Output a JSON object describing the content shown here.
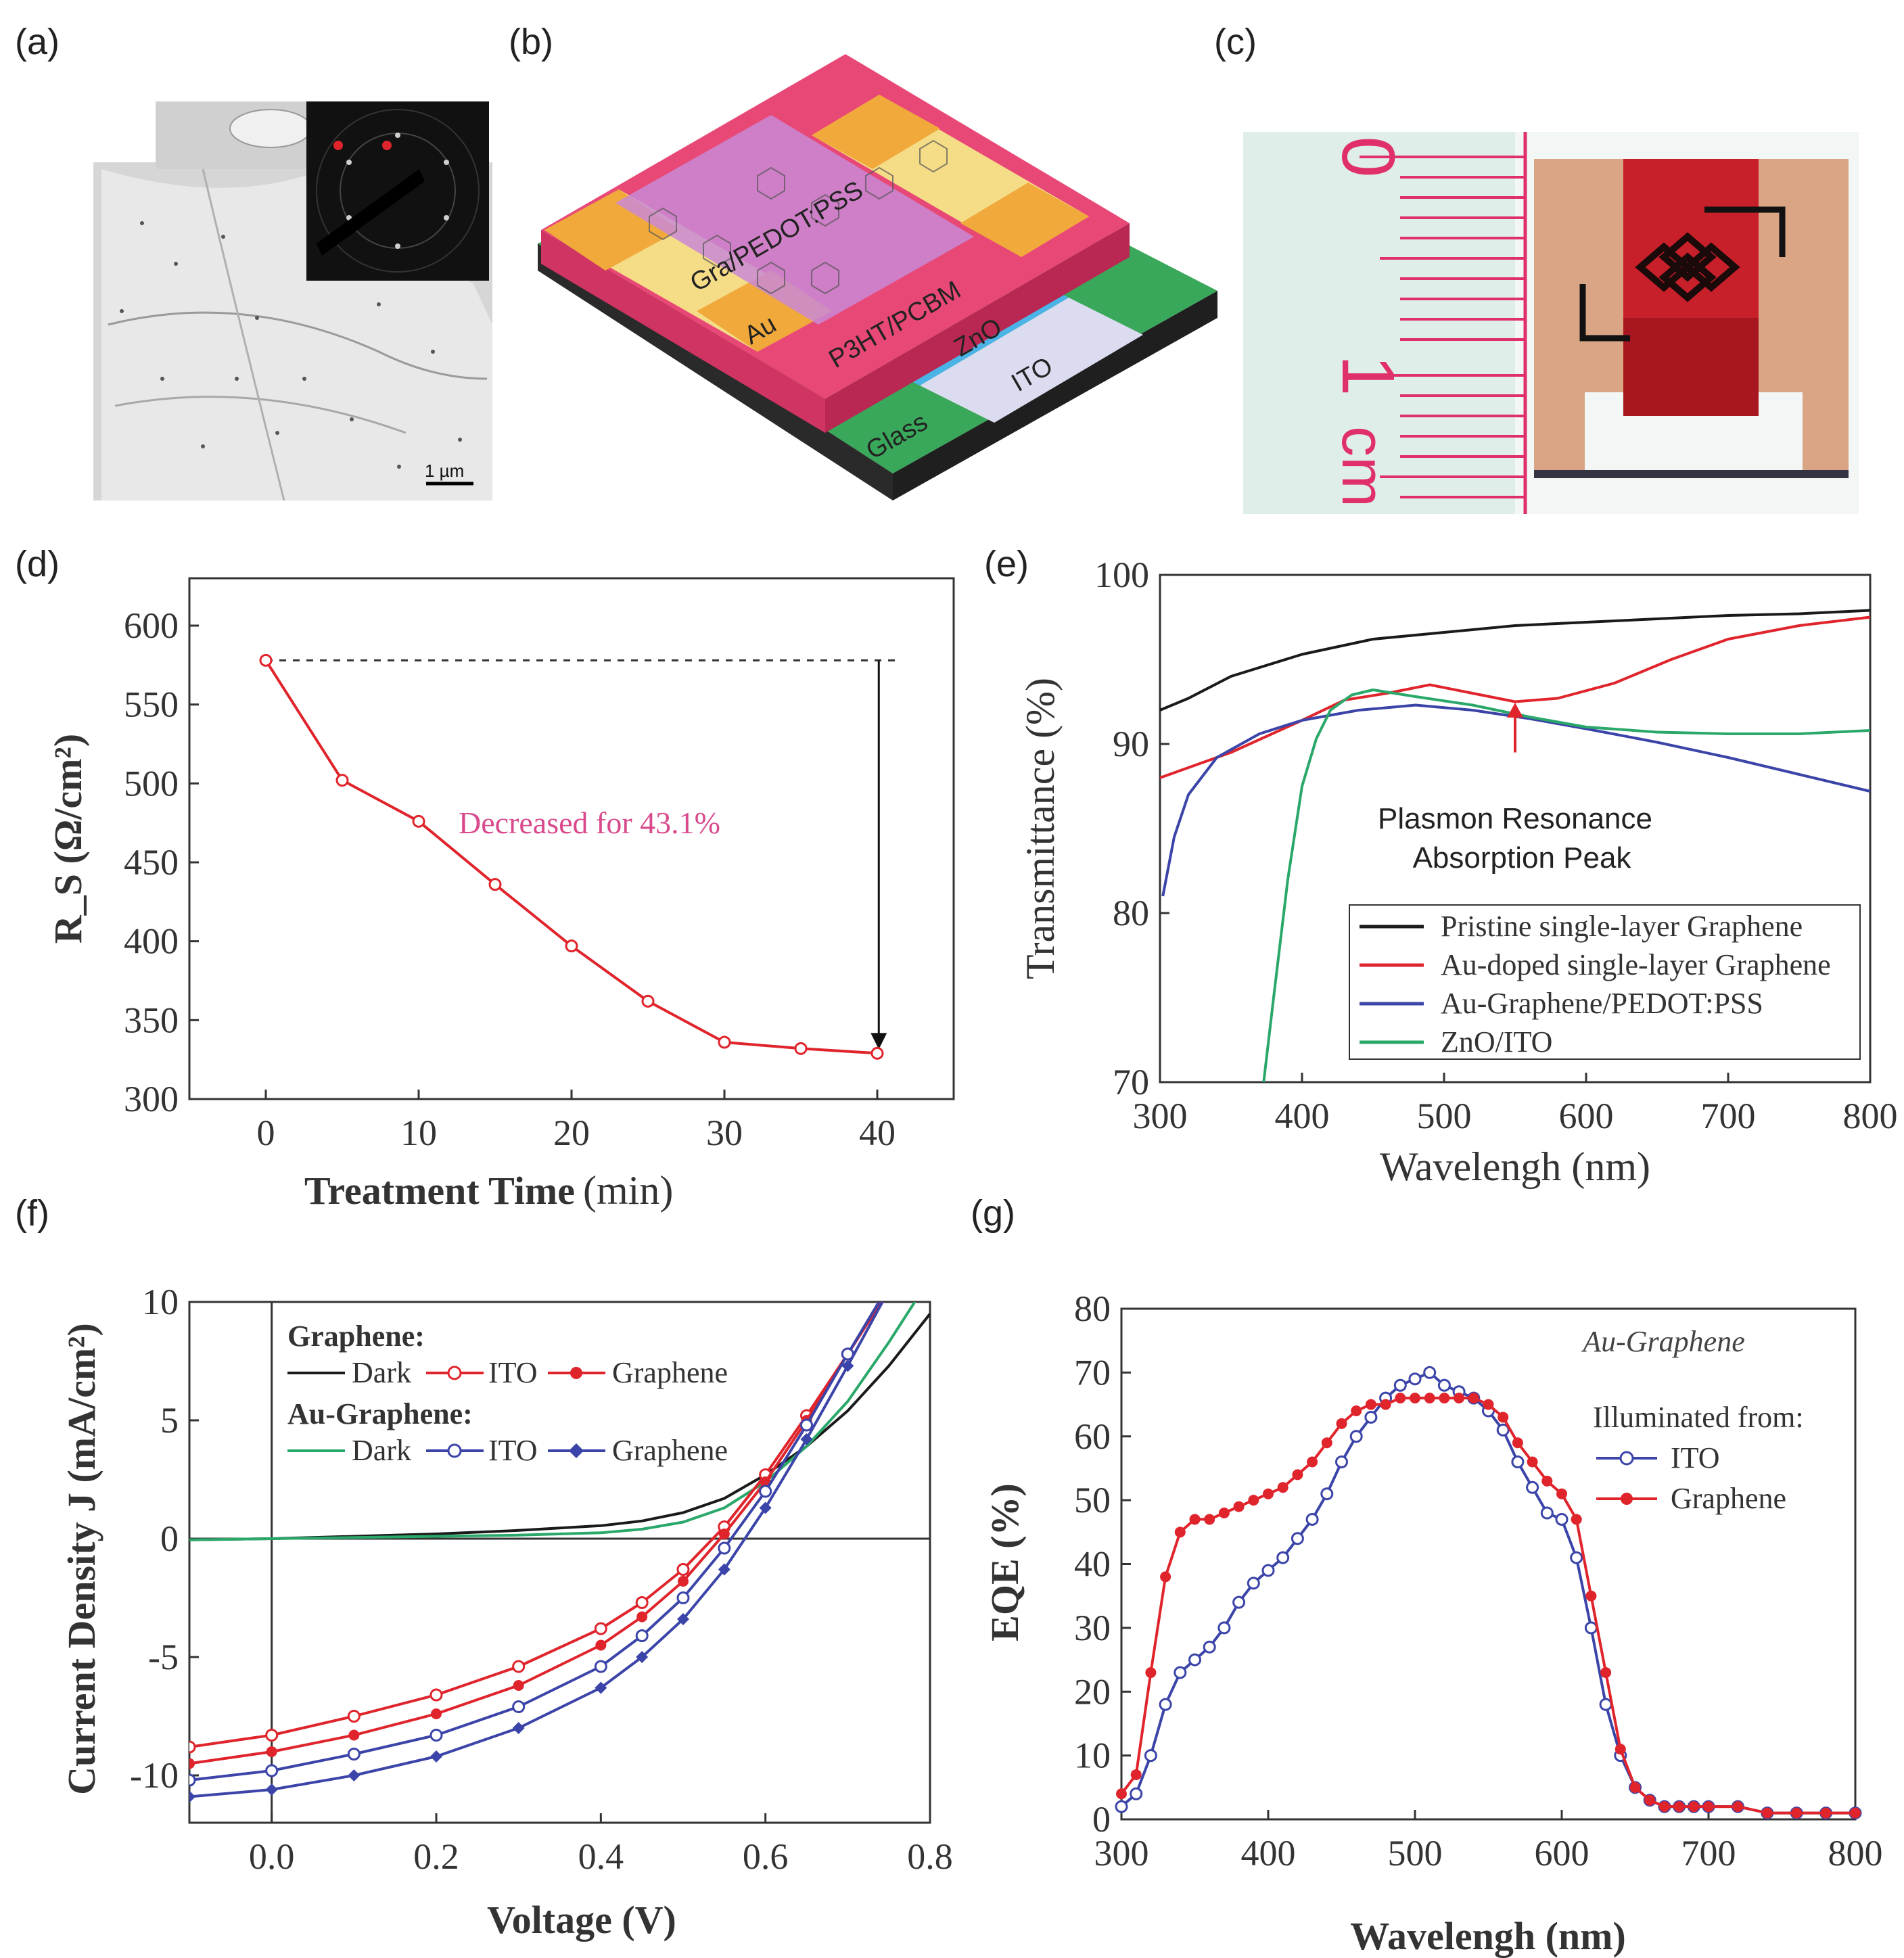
{
  "panels": {
    "a": "(a)",
    "b": "(b)",
    "c": "(c)",
    "d": "(d)",
    "e": "(e)",
    "f": "(f)",
    "g": "(g)"
  },
  "micrograph": {
    "scale_label": "1 µm"
  },
  "device": {
    "top_layer": "Gra/PEDOT:PSS",
    "active_layer": "P3HT/PCBM",
    "electrode": "Au",
    "etl": "ZnO",
    "anode": "ITO",
    "substrate": "Glass"
  },
  "photo": {
    "ruler_zero": "0",
    "ruler_one": "1",
    "ruler_unit": "cm"
  },
  "colors": {
    "black": "#1a1a1a",
    "red": "#e0242c",
    "blue": "#3b44a8",
    "green": "#2aa86a",
    "pink": "#d94a8c"
  },
  "chart_data": [
    {
      "id": "d",
      "type": "line",
      "title": "",
      "xlabel_bold": "Treatment Time",
      "xlabel_unit": "(min)",
      "ylabel": "R_S (Ω/cm²)",
      "xlim": [
        -5,
        45
      ],
      "ylim": [
        300,
        630
      ],
      "xticks": [
        0,
        10,
        20,
        30,
        40
      ],
      "yticks": [
        300,
        350,
        400,
        450,
        500,
        550,
        600
      ],
      "x": [
        0,
        5,
        10,
        15,
        20,
        25,
        30,
        35,
        40
      ],
      "values": [
        578,
        502,
        476,
        436,
        397,
        362,
        336,
        332,
        329
      ],
      "reference_line": 578,
      "annotation": "Decreased for 43.1%"
    },
    {
      "id": "e",
      "type": "line",
      "xlabel": "Wavelengh (nm)",
      "ylabel": "Transmittance (%)",
      "xlim": [
        300,
        800
      ],
      "ylim": [
        70,
        100
      ],
      "xticks": [
        300,
        400,
        500,
        600,
        700,
        800
      ],
      "yticks": [
        70,
        80,
        90,
        100
      ],
      "annotation": [
        "Plasmon Resonance",
        "Absorption Peak"
      ],
      "annotation_x": 550,
      "series": [
        {
          "name": "Pristine single-layer Graphene",
          "color": "#1a1a1a",
          "x": [
            300,
            320,
            350,
            400,
            450,
            500,
            550,
            600,
            650,
            700,
            750,
            800
          ],
          "values": [
            92.0,
            92.7,
            94.0,
            95.3,
            96.2,
            96.6,
            97.0,
            97.2,
            97.4,
            97.6,
            97.7,
            97.9
          ]
        },
        {
          "name": "Au-doped single-layer Graphene",
          "color": "#e0242c",
          "x": [
            300,
            350,
            400,
            430,
            460,
            490,
            520,
            550,
            580,
            620,
            660,
            700,
            750,
            800
          ],
          "values": [
            88.0,
            89.5,
            91.4,
            92.6,
            93.0,
            93.5,
            93.0,
            92.5,
            92.7,
            93.6,
            95.0,
            96.2,
            97.0,
            97.5
          ]
        },
        {
          "name": "Au-Graphene/PEDOT:PSS",
          "color": "#3b44a8",
          "x": [
            302,
            310,
            320,
            340,
            370,
            400,
            440,
            480,
            520,
            560,
            600,
            650,
            700,
            750,
            800
          ],
          "values": [
            81.0,
            84.5,
            87.0,
            89.2,
            90.6,
            91.4,
            92.0,
            92.3,
            92.0,
            91.5,
            90.9,
            90.1,
            89.2,
            88.2,
            87.2
          ]
        },
        {
          "name": "ZnO/ITO",
          "color": "#2aa86a",
          "x": [
            373,
            380,
            390,
            400,
            410,
            420,
            435,
            450,
            480,
            520,
            560,
            600,
            650,
            700,
            750,
            800
          ],
          "values": [
            70.0,
            75.0,
            82.0,
            87.5,
            90.3,
            92.0,
            92.9,
            93.2,
            92.8,
            92.3,
            91.6,
            91.0,
            90.7,
            90.6,
            90.6,
            90.8
          ]
        }
      ]
    },
    {
      "id": "f",
      "type": "line",
      "xlabel": "Voltage (V)",
      "ylabel": "Current Density J (mA/cm²)",
      "xlim": [
        -0.1,
        0.8
      ],
      "ylim": [
        -12,
        10
      ],
      "xticks": [
        0.0,
        0.2,
        0.4,
        0.6,
        0.8
      ],
      "xtick_labels": [
        "0.0",
        "0.2",
        "0.4",
        "0.6",
        "0.8"
      ],
      "yticks": [
        -10,
        -5,
        0,
        5,
        10
      ],
      "legend_groups": [
        "Graphene:",
        "Au-Graphene:"
      ],
      "legend_entries": [
        "Dark",
        "ITO",
        "Graphene"
      ],
      "series": [
        {
          "name": "Graphene Dark",
          "group": "Graphene",
          "color": "#1a1a1a",
          "marker": "none",
          "x": [
            -0.1,
            0.0,
            0.1,
            0.2,
            0.3,
            0.4,
            0.45,
            0.5,
            0.55,
            0.6,
            0.65,
            0.7,
            0.75,
            0.8
          ],
          "values": [
            -0.05,
            0.0,
            0.1,
            0.2,
            0.35,
            0.55,
            0.75,
            1.1,
            1.7,
            2.7,
            3.9,
            5.4,
            7.3,
            9.5
          ]
        },
        {
          "name": "Au-Graphene Dark",
          "group": "Au-Graphene",
          "color": "#2aa86a",
          "marker": "none",
          "x": [
            -0.1,
            0.0,
            0.1,
            0.2,
            0.3,
            0.4,
            0.45,
            0.5,
            0.55,
            0.6,
            0.65,
            0.7,
            0.75,
            0.8
          ],
          "values": [
            -0.05,
            0.0,
            0.05,
            0.1,
            0.15,
            0.25,
            0.4,
            0.7,
            1.3,
            2.4,
            3.9,
            5.8,
            8.3,
            11.0
          ]
        },
        {
          "name": "Graphene ITO",
          "group": "Graphene",
          "color": "#e0242c",
          "marker": "open",
          "x": [
            -0.1,
            0.0,
            0.1,
            0.2,
            0.3,
            0.4,
            0.45,
            0.5,
            0.55,
            0.6,
            0.65,
            0.7,
            0.75
          ],
          "values": [
            -8.8,
            -8.3,
            -7.5,
            -6.6,
            -5.4,
            -3.8,
            -2.7,
            -1.3,
            0.5,
            2.7,
            5.2,
            7.8,
            10.5
          ]
        },
        {
          "name": "Graphene Graphene",
          "group": "Graphene",
          "color": "#e0242c",
          "marker": "filled",
          "x": [
            -0.1,
            0.0,
            0.1,
            0.2,
            0.3,
            0.4,
            0.45,
            0.5,
            0.55,
            0.6,
            0.65,
            0.7,
            0.75
          ],
          "values": [
            -9.5,
            -9.0,
            -8.3,
            -7.4,
            -6.2,
            -4.5,
            -3.3,
            -1.8,
            0.2,
            2.4,
            5.0,
            7.8,
            10.5
          ]
        },
        {
          "name": "Au-Graphene ITO",
          "group": "Au-Graphene",
          "color": "#3b44a8",
          "marker": "open",
          "x": [
            -0.1,
            0.0,
            0.1,
            0.2,
            0.3,
            0.4,
            0.45,
            0.5,
            0.55,
            0.6,
            0.65,
            0.7,
            0.75
          ],
          "values": [
            -10.2,
            -9.8,
            -9.1,
            -8.3,
            -7.1,
            -5.4,
            -4.1,
            -2.5,
            -0.4,
            2.0,
            4.8,
            7.8,
            10.7
          ]
        },
        {
          "name": "Au-Graphene Graphene",
          "group": "Au-Graphene",
          "color": "#3b44a8",
          "marker": "filled",
          "x": [
            -0.1,
            0.0,
            0.1,
            0.2,
            0.3,
            0.4,
            0.45,
            0.5,
            0.55,
            0.6,
            0.65,
            0.7,
            0.75
          ],
          "values": [
            -10.9,
            -10.6,
            -10.0,
            -9.2,
            -8.0,
            -6.3,
            -5.0,
            -3.4,
            -1.3,
            1.3,
            4.2,
            7.3,
            10.5
          ]
        }
      ]
    },
    {
      "id": "g",
      "type": "line",
      "xlabel": "Wavelengh (nm)",
      "ylabel": "EQE (%)",
      "xlim": [
        300,
        800
      ],
      "ylim": [
        0,
        80
      ],
      "xticks": [
        300,
        400,
        500,
        600,
        700,
        800
      ],
      "yticks": [
        0,
        10,
        20,
        30,
        40,
        50,
        60,
        70,
        80
      ],
      "header": "Au-Graphene",
      "legend_title": "Illuminated from:",
      "series": [
        {
          "name": "ITO",
          "color": "#3b44a8",
          "marker": "open",
          "x": [
            300,
            310,
            320,
            330,
            340,
            350,
            360,
            370,
            380,
            390,
            400,
            410,
            420,
            430,
            440,
            450,
            460,
            470,
            480,
            490,
            500,
            510,
            520,
            530,
            540,
            550,
            560,
            570,
            580,
            590,
            600,
            610,
            620,
            630,
            640,
            650,
            660,
            670,
            680,
            690,
            700,
            720,
            740,
            760,
            780,
            800
          ],
          "values": [
            2,
            4,
            10,
            18,
            23,
            25,
            27,
            30,
            34,
            37,
            39,
            41,
            44,
            47,
            51,
            56,
            60,
            63,
            66,
            68,
            69,
            70,
            68,
            67,
            66,
            64,
            61,
            56,
            52,
            48,
            47,
            41,
            30,
            18,
            10,
            5,
            3,
            2,
            2,
            2,
            2,
            2,
            1,
            1,
            1,
            1
          ]
        },
        {
          "name": "Graphene",
          "color": "#e0242c",
          "marker": "filled",
          "x": [
            300,
            310,
            320,
            330,
            340,
            350,
            360,
            370,
            380,
            390,
            400,
            410,
            420,
            430,
            440,
            450,
            460,
            470,
            480,
            490,
            500,
            510,
            520,
            530,
            540,
            550,
            560,
            570,
            580,
            590,
            600,
            610,
            620,
            630,
            640,
            650,
            660,
            670,
            680,
            690,
            700,
            720,
            740,
            760,
            780,
            800
          ],
          "values": [
            4,
            7,
            23,
            38,
            45,
            47,
            47,
            48,
            49,
            50,
            51,
            52,
            54,
            56,
            59,
            62,
            64,
            65,
            65,
            66,
            66,
            66,
            66,
            66,
            66,
            65,
            63,
            59,
            56,
            53,
            51,
            47,
            35,
            23,
            11,
            5,
            3,
            2,
            2,
            2,
            2,
            2,
            1,
            1,
            1,
            1
          ]
        }
      ]
    }
  ]
}
